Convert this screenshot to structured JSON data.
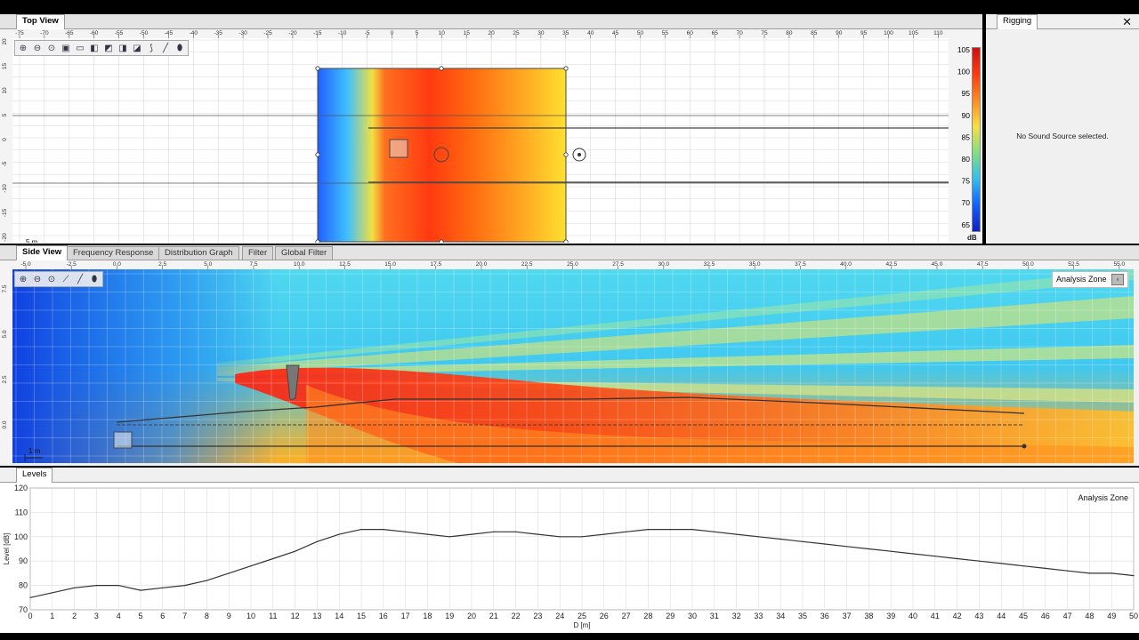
{
  "top_view": {
    "tab": "Top View",
    "ruler_ticks": [
      "-75",
      "-70",
      "-65",
      "-60",
      "-55",
      "-50",
      "-45",
      "-40",
      "-35",
      "-30",
      "-25",
      "-20",
      "-15",
      "-10",
      "-5",
      "0",
      "5",
      "10",
      "15",
      "20",
      "25",
      "30",
      "35",
      "40",
      "45",
      "50",
      "55",
      "60",
      "65",
      "70",
      "75",
      "80",
      "85",
      "90",
      "95",
      "100",
      "105",
      "110"
    ],
    "y_ticks": [
      "20",
      "15",
      "10",
      "5",
      "0",
      "-5",
      "-10",
      "-15",
      "-20"
    ],
    "scale_label": "5 m",
    "colorbar_ticks": [
      "105",
      "100",
      "95",
      "90",
      "85",
      "80",
      "75",
      "70",
      "65"
    ],
    "colorbar_unit": "dB"
  },
  "rigging": {
    "tab": "Rigging",
    "message": "No Sound Source selected."
  },
  "side_view": {
    "tabs": [
      "Side View",
      "Frequency Response",
      "Distribution Graph",
      "Filter",
      "Global Filter"
    ],
    "ruler_ticks": [
      "-5.0",
      "-2.5",
      "0.0",
      "2.5",
      "5.0",
      "7.5",
      "10.0",
      "12.5",
      "15.0",
      "17.5",
      "20.0",
      "22.5",
      "25.0",
      "27.5",
      "30.0",
      "32.5",
      "35.0",
      "37.5",
      "40.0",
      "42.5",
      "45.0",
      "47.5",
      "50.0",
      "52.5",
      "55.0"
    ],
    "y_ticks": [
      "7.5",
      "5.0",
      "2.5",
      "0.0"
    ],
    "scale_label": "1 m",
    "analysis_zone": "Analysis Zone"
  },
  "levels": {
    "tab": "Levels",
    "analysis_zone": "Analysis Zone"
  },
  "chart_data": {
    "type": "line",
    "title": "",
    "xlabel": "D [m]",
    "ylabel": "Level [dB]",
    "xlim": [
      0,
      50
    ],
    "ylim": [
      70,
      120
    ],
    "x_ticks": [
      0,
      1,
      2,
      3,
      4,
      5,
      6,
      7,
      8,
      9,
      10,
      11,
      12,
      13,
      14,
      15,
      16,
      17,
      18,
      19,
      20,
      21,
      22,
      23,
      24,
      25,
      26,
      27,
      28,
      29,
      30,
      31,
      32,
      33,
      34,
      35,
      36,
      37,
      38,
      39,
      40,
      41,
      42,
      43,
      44,
      45,
      46,
      47,
      48,
      49,
      50
    ],
    "y_ticks": [
      70,
      80,
      90,
      100,
      110,
      120
    ],
    "series": [
      {
        "x": [
          0,
          1,
          2,
          3,
          4,
          5,
          6,
          7,
          8,
          9,
          10,
          11,
          12,
          13,
          14,
          15,
          16,
          17,
          18,
          19,
          20,
          21,
          22,
          23,
          24,
          25,
          26,
          27,
          28,
          29,
          30,
          31,
          32,
          33,
          34,
          35,
          36,
          37,
          38,
          39,
          40,
          41,
          42,
          43,
          44,
          45,
          46,
          47,
          48,
          49,
          50
        ],
        "values": [
          75,
          77,
          79,
          80,
          80,
          78,
          79,
          80,
          82,
          85,
          88,
          91,
          94,
          98,
          101,
          103,
          103,
          102,
          101,
          100,
          101,
          102,
          102,
          101,
          100,
          100,
          101,
          102,
          103,
          103,
          103,
          102,
          101,
          100,
          99,
          98,
          97,
          96,
          95,
          94,
          93,
          92,
          91,
          90,
          89,
          88,
          87,
          86,
          85,
          85,
          84
        ]
      }
    ],
    "grid": true
  },
  "colors": {
    "accent": "#ff3300",
    "panel": "#f0f0f0"
  }
}
